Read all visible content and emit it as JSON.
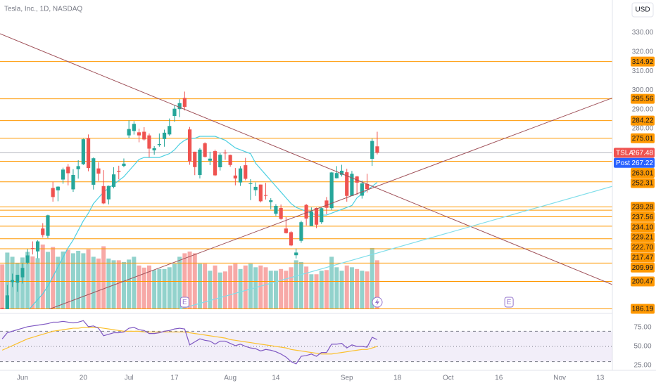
{
  "header": {
    "symbol": "Tesla, Inc., 1D, NASDAQ",
    "currency": "USD"
  },
  "chart_data": {
    "type": "candlestick",
    "up_color": "#26a69a",
    "down_color": "#ef5350",
    "level_color": "#ff9800",
    "xlim": [
      -0.44,
      120.4
    ],
    "ylim": [
      186,
      347
    ],
    "xticks": [
      {
        "value": 4,
        "label": "Jun"
      },
      {
        "value": 16,
        "label": "20"
      },
      {
        "value": 25,
        "label": "Jul"
      },
      {
        "value": 34,
        "label": "17"
      },
      {
        "value": 45,
        "label": "Aug"
      },
      {
        "value": 54,
        "label": "14"
      },
      {
        "value": 68,
        "label": "Sep"
      },
      {
        "value": 78,
        "label": "18"
      },
      {
        "value": 88,
        "label": "Oct"
      },
      {
        "value": 98,
        "label": "16"
      },
      {
        "value": 110,
        "label": "Nov"
      },
      {
        "value": 118,
        "label": "13"
      }
    ],
    "yticks": [
      {
        "value": 330,
        "label": "330.00"
      },
      {
        "value": 320,
        "label": "320.00"
      },
      {
        "value": 310,
        "label": "310.00"
      },
      {
        "value": 300,
        "label": "300.00"
      },
      {
        "value": 290,
        "label": "290.00"
      },
      {
        "value": 280,
        "label": "280.00"
      }
    ],
    "levels": [
      314.92,
      295.56,
      284.22,
      275.01,
      263.01,
      252.31,
      239.28,
      237.56,
      {
        "value": 234.1,
        "label": "234.10"
      },
      229.21,
      {
        "value": 222.7,
        "label": "222.70"
      },
      217.47,
      209.99,
      200.47,
      186.19
    ],
    "last_price": {
      "name": "TSLA",
      "value": 267.48,
      "color": "#ef5350"
    },
    "post_price": {
      "name": "Post",
      "value": 267.22,
      "color": "#2962ff"
    },
    "events": [
      {
        "value": 36,
        "label": "E"
      },
      {
        "value": 100,
        "label": "E"
      }
    ],
    "open": [
      186.5,
      184.6,
      200.1,
      199.8,
      202.6,
      210.2,
      217.8,
      216.1,
      228.0,
      224.2,
      249.1,
      247.9,
      253.5,
      260.2,
      248.4,
      258.9,
      261.5,
      275.1,
      250.8,
      259.3,
      250.1,
      243.2,
      249.7,
      258.0,
      260.6,
      276.5,
      278.8,
      278.1,
      278.4,
      276.5,
      268.7,
      271.5,
      274.6,
      277.0,
      286.6,
      290.2,
      296.0,
      279.6,
      268.0,
      255.9,
      272.4,
      263.3,
      268.3,
      259.9,
      267.5,
      266.3,
      255.6,
      252.0,
      260.97,
      251.5,
      248.0,
      250.9,
      245.4,
      241.8,
      235.7,
      238.7,
      228.0,
      226.1,
      214.1,
      221.6,
      240.3,
      229.3,
      238.7,
      231.3,
      242.6,
      238.6,
      254.2,
      255.98,
      257.3,
      245.0,
      255.1,
      245.1,
      251.2,
      264.3,
      270.8
    ],
    "high": [
      186.8,
      198.6,
      204.5,
      203.9,
      209.8,
      217.3,
      221.3,
      221.9,
      230.8,
      235.2,
      252.4,
      250.0,
      259.7,
      261.6,
      258.9,
      263.6,
      274.8,
      276.99,
      265.0,
      262.5,
      258.4,
      250.4,
      259.9,
      260.7,
      264.5,
      284.3,
      283.9,
      279.97,
      280.8,
      277.5,
      270.9,
      277.5,
      279.5,
      285.3,
      292.2,
      295.3,
      299.3,
      280.9,
      268.0,
      269.9,
      272.9,
      268.0,
      269.1,
      267.3,
      269.1,
      266.5,
      259.5,
      260.5,
      264.8,
      253.7,
      252.0,
      250.9,
      251.8,
      243.8,
      240.7,
      240.5,
      233.97,
      226.7,
      217.6,
      232.1,
      240.8,
      238.98,
      238.9,
      239.0,
      244.4,
      257.5,
      260.5,
      261.2,
      259.1,
      258.0,
      255.4,
      253.0,
      256.5,
      274.85,
      278.4
    ],
    "low": [
      180.6,
      184.5,
      197.5,
      195.1,
      199.4,
      209.4,
      214.5,
      212.5,
      223.3,
      223.0,
      242.0,
      242.2,
      251.3,
      250.5,
      247.1,
      254.0,
      261.1,
      257.8,
      248.3,
      252.8,
      240.7,
      240.6,
      248.9,
      253.6,
      259.9,
      275.2,
      276.9,
      272.9,
      273.8,
      265.1,
      266.4,
      270.6,
      270.6,
      276.3,
      283.6,
      286.0,
      289.5,
      261.2,
      255.8,
      254.1,
      265.0,
      261.0,
      255.3,
      258.2,
      263.8,
      260.2,
      250.5,
      250.2,
      253.1,
      242.8,
      245.0,
      241.6,
      243.1,
      238.0,
      234.6,
      232.6,
      225.4,
      218.8,
      212.4,
      220.6,
      229.6,
      229.3,
      228.2,
      230.4,
      235.4,
      237.6,
      254.1,
      255.1,
      242.0,
      244.9,
      245.5,
      243.6,
      246.7,
      260.6,
      266.6
    ],
    "close": [
      184.5,
      193.2,
      201.2,
      203.9,
      207.5,
      214.0,
      217.6,
      221.3,
      224.6,
      234.9,
      244.4,
      249.8,
      258.7,
      256.8,
      255.9,
      260.5,
      274.5,
      259.5,
      264.6,
      256.6,
      241.1,
      250.2,
      256.2,
      257.5,
      261.8,
      279.8,
      282.5,
      276.5,
      274.4,
      269.6,
      269.8,
      272.0,
      277.9,
      281.4,
      290.4,
      293.3,
      291.3,
      262.9,
      260.0,
      269.1,
      265.3,
      264.4,
      255.7,
      266.4,
      267.4,
      261.1,
      254.1,
      259.3,
      253.9,
      251.5,
      249.7,
      242.2,
      245.3,
      242.7,
      239.8,
      233.0,
      225.6,
      219.2,
      215.5,
      231.3,
      233.2,
      236.9,
      230.0,
      238.6,
      238.8,
      257.2,
      256.9,
      258.1,
      245.0,
      256.5,
      251.9,
      251.5,
      248.5,
      273.6,
      267.5
    ],
    "volume": [
      128,
      162,
      150,
      132,
      148,
      164,
      151,
      146,
      185,
      164,
      178,
      150,
      165,
      170,
      160,
      167,
      160,
      171,
      150,
      145,
      180,
      145,
      140,
      140,
      135,
      142,
      150,
      125,
      119,
      125,
      112,
      115,
      115,
      120,
      130,
      150,
      160,
      165,
      160,
      130,
      130,
      110,
      125,
      105,
      108,
      125,
      130,
      115,
      125,
      130,
      120,
      125,
      120,
      110,
      110,
      115,
      110,
      120,
      140,
      135,
      122,
      100,
      100,
      110,
      112,
      150,
      120,
      110,
      125,
      120,
      115,
      110,
      108,
      175,
      140
    ],
    "ma": {
      "color": "#4dd0e1",
      "values": [
        175,
        176,
        178,
        180,
        182,
        185,
        188,
        191,
        194,
        198,
        203,
        208,
        213,
        218,
        222,
        227,
        232,
        236,
        241,
        244,
        247,
        249,
        251,
        253,
        255,
        258,
        261,
        264,
        265,
        265,
        265,
        265,
        266,
        267,
        269,
        272,
        274,
        275,
        275,
        276,
        276,
        276,
        276,
        275,
        274,
        272,
        270,
        269,
        268,
        267,
        262,
        259,
        256,
        253,
        250,
        247,
        244,
        241,
        239,
        238,
        237,
        236,
        235,
        235,
        235,
        236,
        237,
        238,
        239,
        240,
        244,
        246,
        248,
        250,
        252
      ]
    },
    "rsi": {
      "color": "#7e57c2",
      "values": [
        60,
        68,
        70,
        72,
        74,
        76,
        77,
        78,
        79,
        80,
        82,
        82,
        83,
        82,
        81,
        82,
        84,
        76,
        77,
        74,
        64,
        66,
        68,
        68,
        69,
        74,
        75,
        72,
        71,
        67,
        67,
        68,
        70,
        71,
        73,
        74,
        73,
        52,
        56,
        60,
        58,
        57,
        53,
        57,
        57,
        54,
        51,
        53,
        50,
        48,
        47,
        44,
        46,
        45,
        43,
        40,
        36,
        30,
        27,
        37,
        38,
        40,
        37,
        42,
        42,
        53,
        53,
        54,
        48,
        52,
        50,
        50,
        49,
        62,
        59
      ]
    },
    "rsi_ma": {
      "color": "#fbc02d",
      "values": [
        45,
        48,
        51,
        54,
        57,
        60,
        62,
        64,
        66,
        68,
        70,
        71,
        72,
        73,
        74,
        74,
        75,
        75,
        75,
        75,
        74,
        73,
        72,
        71,
        70,
        70,
        70,
        70,
        69,
        69,
        69,
        69,
        69,
        69,
        69,
        69,
        69,
        68,
        67,
        66,
        65,
        64,
        63,
        62,
        61,
        59,
        58,
        57,
        56,
        55,
        54,
        53,
        52,
        51,
        50,
        49,
        48,
        46,
        45,
        44,
        43,
        42,
        41,
        40,
        40,
        40,
        41,
        42,
        43,
        44,
        45,
        46,
        46,
        48,
        50
      ]
    },
    "rsi_ylim": [
      18.5,
      93.5
    ],
    "rsi_yticks": [
      {
        "value": 75,
        "label": "75.00"
      },
      {
        "value": 50,
        "label": "50.00"
      },
      {
        "value": 25,
        "label": "25.00"
      }
    ],
    "rsi_levels": [
      70,
      50,
      30
    ]
  }
}
